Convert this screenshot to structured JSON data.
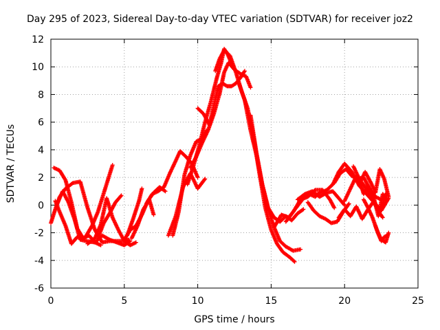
{
  "chart_data": {
    "type": "scatter",
    "title": "Day 295 of 2023, Sidereal Day-to-day VTEC variation (SDTVAR) for receiver joz2",
    "xlabel": "GPS time / hours",
    "ylabel": "SDTVAR / TECUs",
    "xlim": [
      0,
      25
    ],
    "ylim": [
      -6,
      12
    ],
    "xticks": [
      0,
      5,
      10,
      15,
      20,
      25
    ],
    "yticks": [
      -6,
      -4,
      -2,
      0,
      2,
      4,
      6,
      8,
      10,
      12
    ],
    "grid": true,
    "marker": "+",
    "color": "#ff0000",
    "series": [
      {
        "x": [
          0.0,
          0.3,
          0.6,
          1.0,
          1.5,
          2.0,
          2.5,
          3.0,
          3.5,
          4.0,
          4.5,
          5.0,
          5.3
        ],
        "y": [
          -1.3,
          -0.3,
          0.6,
          1.2,
          1.6,
          1.7,
          -0.2,
          -1.8,
          -2.7,
          -2.6,
          -2.6,
          -2.6,
          -2.5
        ]
      },
      {
        "x": [
          0.2,
          0.6,
          1.0,
          1.4,
          1.8,
          2.2,
          2.6,
          3.0,
          3.4
        ],
        "y": [
          2.7,
          2.5,
          1.8,
          0.2,
          -1.7,
          -2.4,
          -2.2,
          -2.7,
          -2.9
        ]
      },
      {
        "x": [
          0.4,
          0.8,
          1.2,
          1.6,
          2.0,
          2.4,
          3.0,
          3.5,
          4.0,
          4.5,
          5.0,
          5.4
        ],
        "y": [
          0.0,
          1.0,
          0.2,
          -1.0,
          -2.5,
          -2.6,
          -2.7,
          -2.2,
          -2.5,
          -2.7,
          -2.9,
          -2.6
        ]
      },
      {
        "x": [
          0.3,
          0.6,
          1.0,
          1.4,
          1.8,
          2.3,
          2.8,
          3.2,
          3.7,
          4.2
        ],
        "y": [
          0.3,
          -0.5,
          -1.5,
          -2.8,
          -2.3,
          -2.4,
          -1.5,
          -0.5,
          1.2,
          2.9
        ]
      },
      {
        "x": [
          2.5,
          3.0,
          3.4,
          3.8,
          4.2,
          4.6,
          5.0,
          5.4,
          5.8
        ],
        "y": [
          -2.8,
          -2.4,
          -1.4,
          0.5,
          -0.9,
          -1.8,
          -2.6,
          -2.9,
          -2.7
        ]
      },
      {
        "x": [
          3.2,
          3.6,
          4.0,
          4.4,
          4.8
        ],
        "y": [
          -2.4,
          -1.3,
          -0.6,
          0.2,
          0.7
        ]
      },
      {
        "x": [
          5.0,
          5.4,
          5.8,
          6.2,
          6.6,
          7.0,
          7.4,
          7.8
        ],
        "y": [
          -2.5,
          -1.8,
          -1.5,
          -0.7,
          0.3,
          0.9,
          1.3,
          1.0
        ]
      },
      {
        "x": [
          5.2,
          5.6,
          6.0,
          6.2
        ],
        "y": [
          -2.2,
          -1.0,
          0.3,
          1.2
        ]
      },
      {
        "x": [
          5.5,
          5.9,
          6.3,
          6.7,
          7.0
        ],
        "y": [
          -2.4,
          -1.5,
          -0.3,
          0.4,
          -0.7
        ]
      },
      {
        "x": [
          6.5,
          6.9,
          7.3,
          7.7,
          8.1,
          8.5,
          8.8,
          9.2,
          9.6,
          10.0
        ],
        "y": [
          0.1,
          0.8,
          1.0,
          1.3,
          2.3,
          3.2,
          3.9,
          3.5,
          3.0,
          2.0
        ]
      },
      {
        "x": [
          8.0,
          8.5,
          9.0,
          9.5,
          10.0,
          10.5
        ],
        "y": [
          -2.2,
          -0.8,
          1.3,
          2.3,
          1.2,
          1.9
        ]
      },
      {
        "x": [
          8.3,
          8.7,
          9.1,
          9.5,
          9.9,
          10.3,
          10.6
        ],
        "y": [
          -2.2,
          -0.5,
          2.2,
          3.6,
          4.6,
          4.8,
          5.4
        ]
      },
      {
        "x": [
          9.3,
          9.7,
          10.1,
          10.5,
          10.9,
          11.3,
          11.6,
          11.8,
          12.0,
          12.4
        ],
        "y": [
          1.5,
          2.8,
          4.3,
          6.0,
          7.5,
          9.2,
          10.3,
          11.3,
          11.0,
          10.0
        ]
      },
      {
        "x": [
          9.5,
          9.9,
          10.3,
          10.7,
          11.1,
          11.5,
          11.8,
          12.1,
          12.5,
          12.9,
          13.3,
          13.6
        ],
        "y": [
          2.7,
          3.5,
          4.5,
          5.4,
          6.6,
          8.1,
          9.6,
          10.3,
          9.8,
          9.5,
          9.3,
          8.5
        ]
      },
      {
        "x": [
          10.0,
          10.4,
          10.8,
          11.1,
          11.4,
          11.7,
          12.0,
          12.3,
          12.6,
          12.9,
          13.2
        ],
        "y": [
          7.0,
          6.6,
          5.8,
          7.2,
          8.6,
          8.8,
          8.6,
          8.6,
          8.8,
          9.2,
          9.7
        ]
      },
      {
        "x": [
          11.2,
          11.5,
          11.8,
          12.2,
          12.6,
          13.0,
          13.4,
          13.8,
          14.2,
          14.6,
          15.0,
          15.4,
          15.8,
          16.3,
          16.6
        ],
        "y": [
          9.7,
          10.6,
          11.2,
          10.8,
          9.6,
          8.2,
          7.0,
          4.9,
          2.3,
          -0.2,
          -1.8,
          -2.8,
          -3.4,
          -3.8,
          -4.1
        ]
      },
      {
        "x": [
          12.8,
          13.2,
          13.6,
          14.0,
          14.4,
          14.8,
          15.2,
          15.6,
          16.0,
          16.5,
          17.0
        ],
        "y": [
          8.8,
          7.6,
          5.4,
          3.6,
          1.4,
          -0.3,
          -1.6,
          -2.6,
          -3.0,
          -3.3,
          -3.2
        ]
      },
      {
        "x": [
          13.6,
          14.0,
          14.4,
          14.8,
          15.2,
          15.6,
          16.0,
          16.4,
          16.8,
          17.2
        ],
        "y": [
          6.5,
          3.8,
          1.5,
          -0.2,
          -0.9,
          -1.2,
          -0.8,
          -1.1,
          -0.6,
          -0.3
        ]
      },
      {
        "x": [
          15.2,
          15.7,
          16.2,
          16.7,
          17.2,
          17.6,
          18.0,
          18.3
        ],
        "y": [
          -1.6,
          -0.7,
          -0.9,
          -0.2,
          0.5,
          0.8,
          0.6,
          0.9
        ]
      },
      {
        "x": [
          16.0,
          16.5,
          17.0,
          17.5,
          18.0,
          18.5,
          19.0,
          19.3
        ],
        "y": [
          -1.2,
          -0.5,
          0.4,
          0.6,
          1.1,
          1.1,
          0.4,
          -0.2
        ]
      },
      {
        "x": [
          17.5,
          17.9,
          18.3,
          18.7,
          19.1,
          19.5,
          19.9,
          20.3
        ],
        "y": [
          0.2,
          -0.4,
          -0.8,
          -1.0,
          -1.3,
          -1.2,
          -0.5,
          0.1
        ]
      },
      {
        "x": [
          16.8,
          17.3,
          17.8,
          18.3,
          18.8,
          19.2,
          19.6,
          20.0
        ],
        "y": [
          0.4,
          0.8,
          1.0,
          0.6,
          0.9,
          1.0,
          0.5,
          0.0
        ]
      },
      {
        "x": [
          18.0,
          18.4,
          18.8,
          19.2,
          19.6,
          20.0,
          20.5,
          21.0,
          21.5,
          22.0,
          22.5,
          23.0
        ],
        "y": [
          0.7,
          0.9,
          1.1,
          1.5,
          2.4,
          3.0,
          2.4,
          1.4,
          0.8,
          0.2,
          -0.4,
          0.5
        ]
      },
      {
        "x": [
          19.3,
          19.7,
          20.1,
          20.5,
          20.9,
          21.3,
          21.7,
          22.1,
          22.5,
          22.9
        ],
        "y": [
          1.6,
          2.3,
          2.6,
          2.1,
          1.9,
          2.0,
          1.2,
          0.6,
          0.4,
          0.9
        ]
      },
      {
        "x": [
          19.6,
          20.0,
          20.4,
          20.8,
          21.2,
          21.6,
          22.0,
          22.4,
          22.8
        ],
        "y": [
          -0.9,
          -0.3,
          -0.8,
          -0.1,
          -1.0,
          -0.3,
          0.3,
          -0.5,
          0.7
        ]
      },
      {
        "x": [
          20.0,
          20.4,
          20.8,
          21.2,
          21.6,
          22.0,
          22.4,
          22.6
        ],
        "y": [
          0.3,
          1.2,
          2.1,
          1.6,
          1.0,
          0.2,
          -0.6,
          -0.9
        ]
      },
      {
        "x": [
          20.6,
          21.0,
          21.3,
          21.6,
          22.0,
          22.3,
          22.6,
          22.9
        ],
        "y": [
          2.8,
          1.9,
          0.8,
          1.4,
          0.5,
          -0.8,
          0.8,
          0.4
        ]
      },
      {
        "x": [
          21.0,
          21.4,
          21.8,
          22.1,
          22.4,
          22.7,
          23.0
        ],
        "y": [
          1.5,
          2.4,
          1.6,
          0.9,
          2.6,
          1.9,
          0.6
        ]
      },
      {
        "x": [
          21.3,
          21.6,
          21.9,
          22.2,
          22.5,
          22.8,
          23.0
        ],
        "y": [
          0.4,
          -0.2,
          -0.9,
          -1.8,
          -2.5,
          -2.7,
          -2.0
        ]
      },
      {
        "x": [
          22.1,
          22.3,
          22.5,
          22.7,
          22.9
        ],
        "y": [
          -1.5,
          -2.1,
          -2.6,
          -2.3,
          -2.2
        ]
      }
    ]
  }
}
